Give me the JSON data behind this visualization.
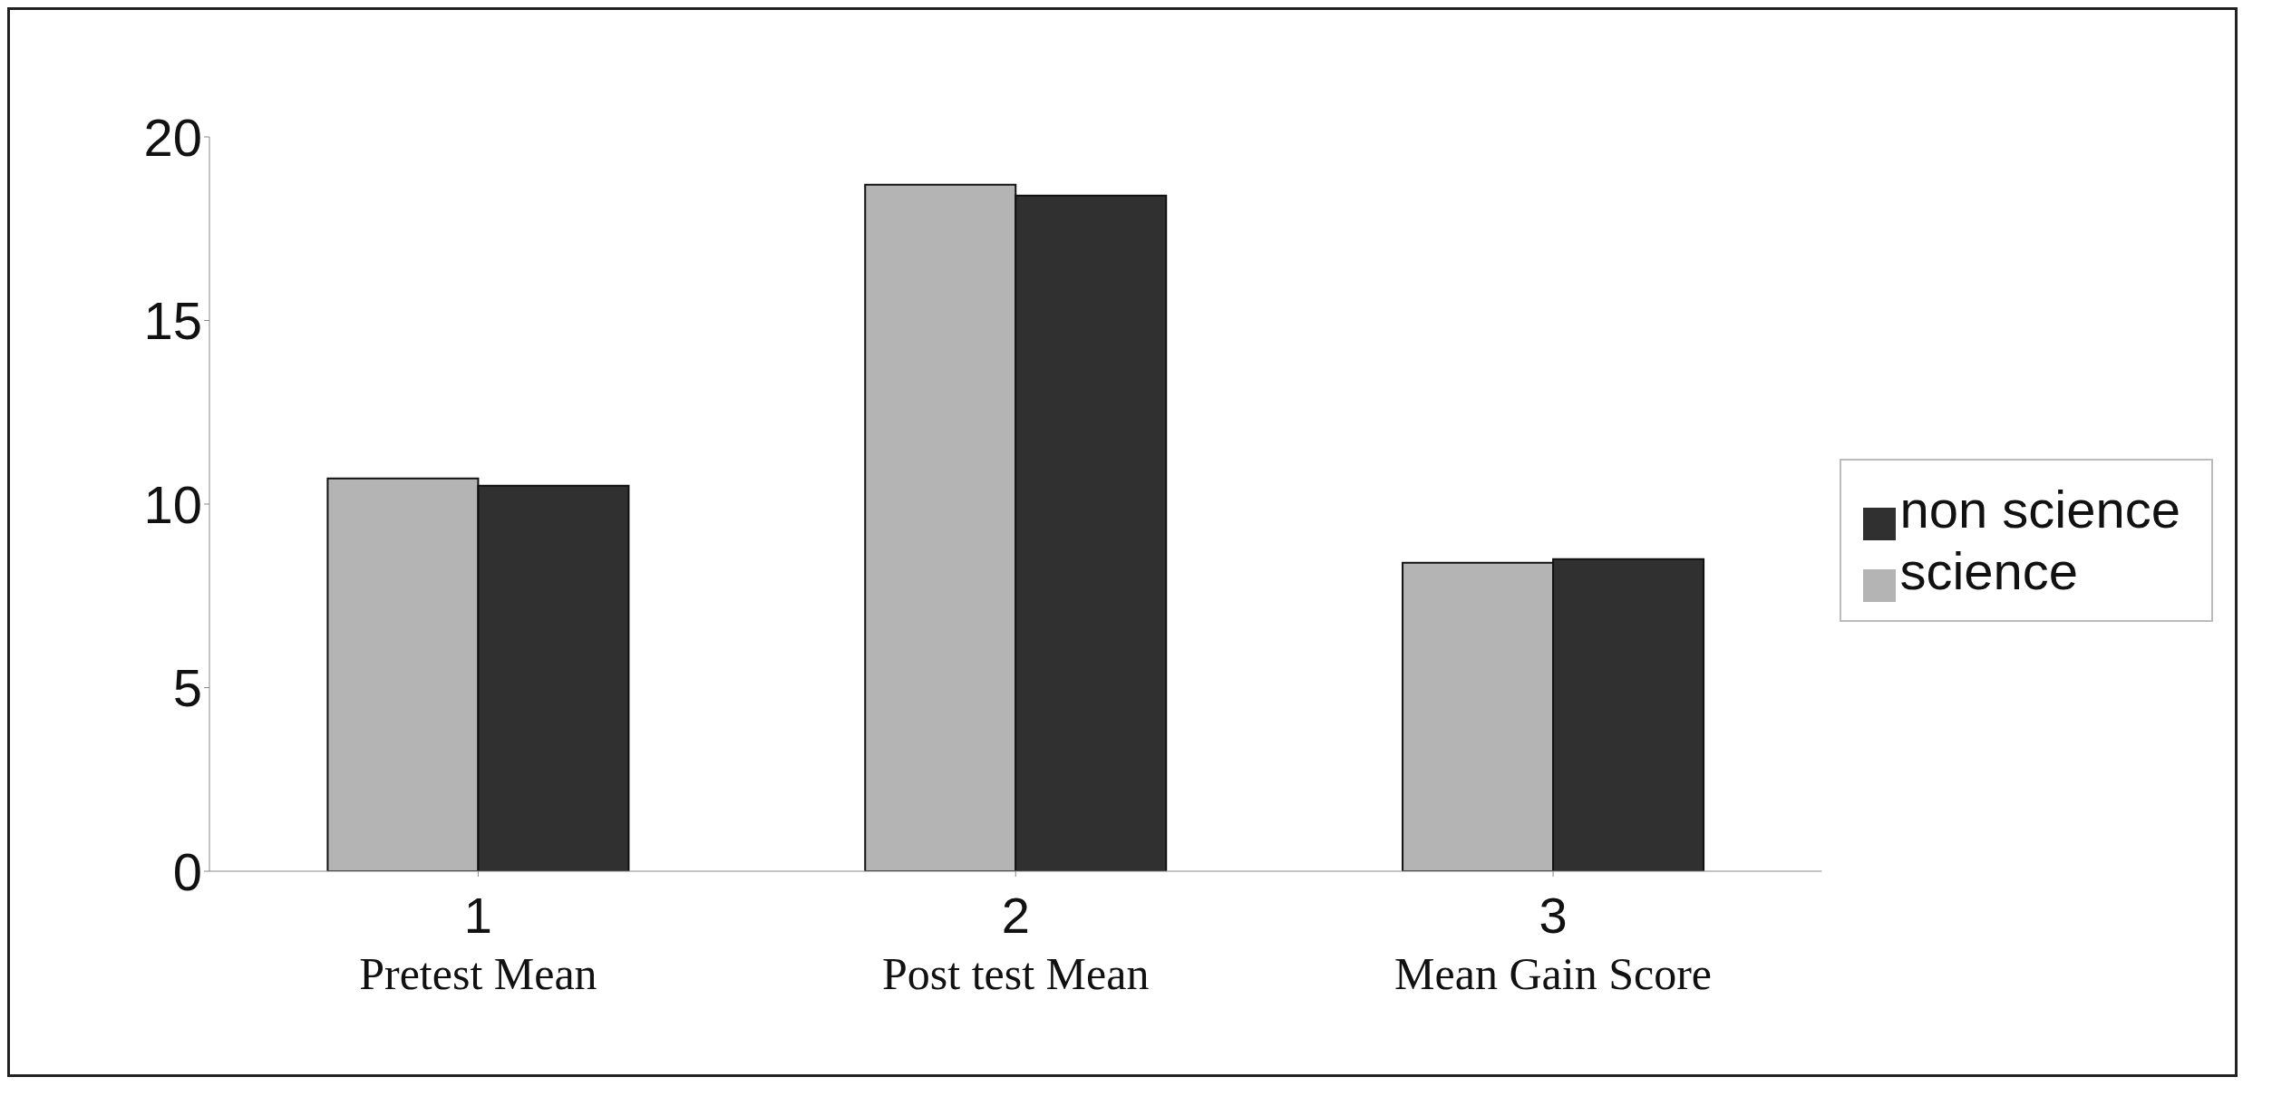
{
  "chart_data": {
    "type": "bar",
    "categories": [
      "1\nPretest Mean",
      "2\nPost test Mean",
      "3\nMean Gain Score"
    ],
    "series": [
      {
        "name": "science",
        "color": "#b4b4b4",
        "values": [
          10.7,
          18.7,
          8.4
        ]
      },
      {
        "name": "non science",
        "color": "#303030",
        "values": [
          10.5,
          18.4,
          8.5
        ]
      }
    ],
    "ylim": [
      0,
      20
    ],
    "yticks": [
      0,
      5,
      10,
      15,
      20
    ],
    "grid": false,
    "legend": "right"
  }
}
